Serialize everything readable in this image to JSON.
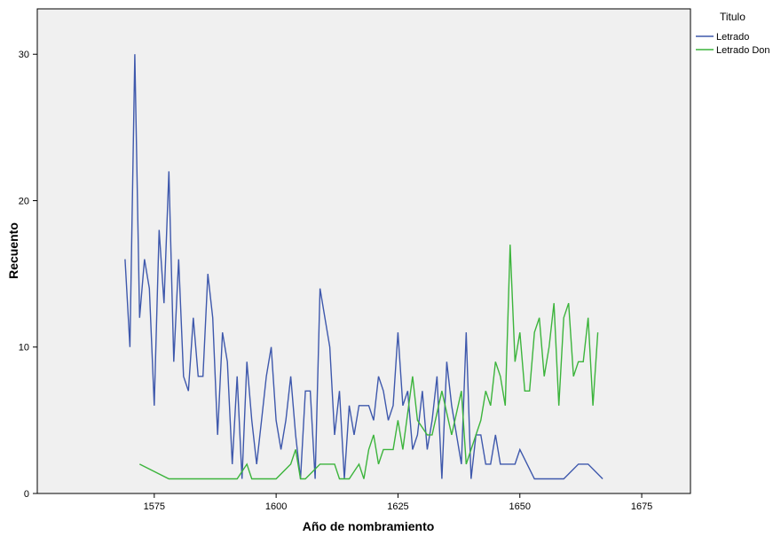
{
  "chart_data": {
    "type": "line",
    "xlabel": "Año de nombramiento",
    "ylabel": "Recuento",
    "xlim": [
      1551,
      1685
    ],
    "ylim": [
      0,
      33.1
    ],
    "xticks": [
      1575,
      1600,
      1625,
      1650,
      1675
    ],
    "yticks": [
      0,
      10,
      20,
      30
    ],
    "grid": false,
    "plot_background": "#f0f0f0",
    "legend": {
      "title": "Titulo",
      "placement": "right-top",
      "entries": [
        "Letrado",
        "Letrado Don"
      ]
    },
    "series": [
      {
        "name": "Letrado",
        "color": "#3e58ac",
        "x": [
          1569,
          1570,
          1571,
          1572,
          1573,
          1574,
          1575,
          1576,
          1577,
          1578,
          1579,
          1580,
          1581,
          1582,
          1583,
          1584,
          1585,
          1586,
          1587,
          1588,
          1589,
          1590,
          1591,
          1592,
          1593,
          1594,
          1595,
          1596,
          1597,
          1598,
          1599,
          1600,
          1601,
          1602,
          1603,
          1604,
          1605,
          1606,
          1607,
          1608,
          1609,
          1610,
          1611,
          1612,
          1613,
          1614,
          1615,
          1616,
          1617,
          1618,
          1619,
          1620,
          1621,
          1622,
          1623,
          1624,
          1625,
          1626,
          1627,
          1628,
          1629,
          1630,
          1631,
          1632,
          1633,
          1634,
          1635,
          1636,
          1637,
          1638,
          1639,
          1640,
          1641,
          1642,
          1643,
          1644,
          1645,
          1646,
          1647,
          1648,
          1649,
          1650,
          1653,
          1656,
          1659,
          1662,
          1664,
          1667
        ],
        "y": [
          16,
          10,
          30,
          12,
          16,
          14,
          6,
          18,
          13,
          22,
          9,
          16,
          8,
          7,
          12,
          8,
          8,
          15,
          12,
          4,
          11,
          9,
          2,
          8,
          1,
          9,
          5,
          2,
          5,
          8,
          10,
          5,
          3,
          5,
          8,
          4,
          1,
          7,
          7,
          1,
          14,
          12,
          10,
          4,
          7,
          1,
          6,
          4,
          6,
          6,
          6,
          5,
          8,
          7,
          5,
          6,
          11,
          6,
          7,
          3,
          4,
          7,
          3,
          5,
          8,
          1,
          9,
          6,
          4,
          2,
          11,
          1,
          4,
          4,
          2,
          2,
          4,
          2,
          2,
          2,
          2,
          3,
          1,
          1,
          1,
          2,
          2,
          1
        ]
      },
      {
        "name": "Letrado Don",
        "color": "#3cb43c",
        "x": [
          1572,
          1578,
          1580,
          1586,
          1592,
          1594,
          1595,
          1600,
          1603,
          1604,
          1605,
          1606,
          1609,
          1612,
          1613,
          1615,
          1617,
          1618,
          1619,
          1620,
          1621,
          1622,
          1624,
          1625,
          1626,
          1628,
          1629,
          1631,
          1632,
          1634,
          1636,
          1638,
          1639,
          1641,
          1642,
          1643,
          1644,
          1645,
          1646,
          1647,
          1648,
          1649,
          1650,
          1651,
          1652,
          1653,
          1654,
          1655,
          1656,
          1657,
          1658,
          1659,
          1660,
          1661,
          1662,
          1663,
          1664,
          1665,
          1666
        ],
        "y": [
          2,
          1,
          1,
          1,
          1,
          2,
          1,
          1,
          2,
          3,
          1,
          1,
          2,
          2,
          1,
          1,
          2,
          1,
          3,
          4,
          2,
          3,
          3,
          5,
          3,
          8,
          5,
          4,
          4,
          7,
          4,
          7,
          2,
          4,
          5,
          7,
          6,
          9,
          8,
          6,
          17,
          9,
          11,
          7,
          7,
          11,
          12,
          8,
          10,
          13,
          6,
          12,
          13,
          8,
          9,
          9,
          12,
          6,
          11
        ]
      }
    ]
  }
}
